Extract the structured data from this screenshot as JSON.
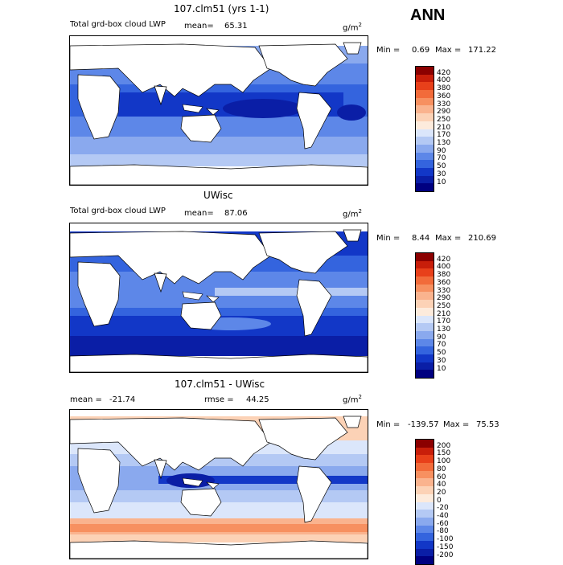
{
  "season": "ANN",
  "panels": [
    {
      "title": "107.clm51 (yrs 1-1)",
      "left_label": "Total grd-box cloud LWP",
      "mean_label": "mean=",
      "mean_value": "65.31",
      "units": "g/m",
      "units_exp": "2",
      "min_label": "Min =",
      "min_value": "0.69",
      "max_label": "Max =",
      "max_value": "171.22",
      "levels": [
        "420",
        "400",
        "380",
        "360",
        "330",
        "290",
        "250",
        "210",
        "170",
        "130",
        "90",
        "70",
        "50",
        "30",
        "10"
      ],
      "colors": [
        "#8b0000",
        "#c81e0a",
        "#e8401a",
        "#f26b3a",
        "#f79060",
        "#fab38e",
        "#fcd2b6",
        "#fdebdc",
        "#dbe6fb",
        "#b4c9f4",
        "#8aa9ee",
        "#5d87e8",
        "#3464de",
        "#1237c7",
        "#0a1ea6",
        "#000080"
      ]
    },
    {
      "title": "UWisc",
      "left_label": "Total grd-box cloud LWP",
      "mean_label": "mean=",
      "mean_value": "87.06",
      "units": "g/m",
      "units_exp": "2",
      "min_label": "Min =",
      "min_value": "8.44",
      "max_label": "Max =",
      "max_value": "210.69",
      "levels": [
        "420",
        "400",
        "380",
        "360",
        "330",
        "290",
        "250",
        "210",
        "170",
        "130",
        "90",
        "70",
        "50",
        "30",
        "10"
      ],
      "colors": [
        "#8b0000",
        "#c81e0a",
        "#e8401a",
        "#f26b3a",
        "#f79060",
        "#fab38e",
        "#fcd2b6",
        "#fdebdc",
        "#dbe6fb",
        "#b4c9f4",
        "#8aa9ee",
        "#5d87e8",
        "#3464de",
        "#1237c7",
        "#0a1ea6",
        "#000080"
      ]
    },
    {
      "title": "107.clm51 - UWisc",
      "mean_label": "mean =",
      "mean_value": "-21.74",
      "rmse_label": "rmse =",
      "rmse_value": "44.25",
      "units": "g/m",
      "units_exp": "2",
      "min_label": "Min =",
      "min_value": "-139.57",
      "max_label": "Max =",
      "max_value": "75.53",
      "levels": [
        "200",
        "150",
        "100",
        "80",
        "60",
        "40",
        "20",
        "0",
        "-20",
        "-40",
        "-60",
        "-80",
        "-100",
        "-150",
        "-200"
      ],
      "colors": [
        "#8b0000",
        "#c81e0a",
        "#e8401a",
        "#f26b3a",
        "#f79060",
        "#fab38e",
        "#fcd2b6",
        "#fdebdc",
        "#dbe6fb",
        "#b4c9f4",
        "#8aa9ee",
        "#5d87e8",
        "#3464de",
        "#1237c7",
        "#0a1ea6",
        "#000080"
      ]
    }
  ]
}
